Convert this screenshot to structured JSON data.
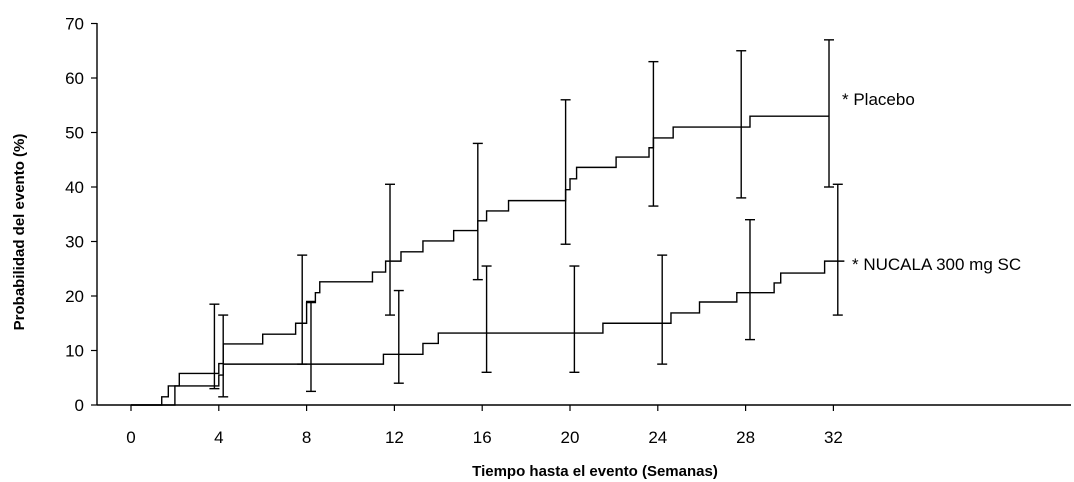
{
  "chart_data": {
    "type": "line",
    "title": "",
    "xlabel": "Tiempo hasta el evento (Semanas)",
    "ylabel": "Probabilidad del evento (%)",
    "xlim": [
      0,
      32
    ],
    "ylim": [
      0,
      70
    ],
    "x_ticks": [
      "0",
      "4",
      "8",
      "12",
      "16",
      "20",
      "24",
      "28",
      "32"
    ],
    "y_ticks": [
      "0",
      "10",
      "20",
      "30",
      "40",
      "50",
      "60",
      "70"
    ],
    "grid": false,
    "series": [
      {
        "name": "* Placebo",
        "steps": [
          [
            0,
            0
          ],
          [
            1.4,
            1.5
          ],
          [
            1.7,
            3.5
          ],
          [
            2.2,
            5.8
          ],
          [
            4.0,
            7.6
          ],
          [
            4.2,
            11.2
          ],
          [
            6.0,
            13.0
          ],
          [
            7.5,
            15.0
          ],
          [
            8.0,
            18.8
          ],
          [
            8.4,
            20.6
          ],
          [
            8.6,
            22.6
          ],
          [
            11.0,
            24.4
          ],
          [
            11.6,
            26.4
          ],
          [
            12.3,
            28.1
          ],
          [
            13.3,
            30.1
          ],
          [
            14.7,
            32.0
          ],
          [
            15.8,
            33.8
          ],
          [
            16.2,
            35.6
          ],
          [
            17.2,
            37.5
          ],
          [
            19.8,
            39.5
          ],
          [
            20.0,
            41.5
          ],
          [
            20.3,
            43.6
          ],
          [
            22.1,
            45.5
          ],
          [
            23.6,
            47.2
          ],
          [
            23.8,
            49.0
          ],
          [
            24.7,
            51.0
          ],
          [
            28.2,
            53.0
          ],
          [
            31.8,
            53.0
          ]
        ],
        "error_bars": [
          {
            "x": 3.8,
            "low": 3.0,
            "high": 18.5
          },
          {
            "x": 7.8,
            "low": 7.5,
            "high": 27.5
          },
          {
            "x": 11.8,
            "low": 16.5,
            "high": 40.5
          },
          {
            "x": 15.8,
            "low": 23.0,
            "high": 48.0
          },
          {
            "x": 19.8,
            "low": 29.5,
            "high": 56.0
          },
          {
            "x": 23.8,
            "low": 36.5,
            "high": 63.0
          },
          {
            "x": 27.8,
            "low": 38.0,
            "high": 65.0
          },
          {
            "x": 31.8,
            "low": 40.0,
            "high": 67.0
          }
        ]
      },
      {
        "name": "* NUCALA 300 mg SC",
        "steps": [
          [
            0,
            0
          ],
          [
            2.0,
            3.5
          ],
          [
            4.0,
            5.5
          ],
          [
            4.2,
            7.5
          ],
          [
            11.5,
            9.3
          ],
          [
            13.3,
            11.3
          ],
          [
            14.0,
            13.2
          ],
          [
            21.5,
            15.0
          ],
          [
            24.6,
            16.9
          ],
          [
            25.9,
            18.9
          ],
          [
            27.6,
            20.6
          ],
          [
            29.3,
            22.4
          ],
          [
            29.6,
            24.2
          ],
          [
            31.6,
            26.4
          ],
          [
            32.5,
            26.4
          ]
        ],
        "error_bars": [
          {
            "x": 4.2,
            "low": 1.5,
            "high": 16.5
          },
          {
            "x": 8.2,
            "low": 2.5,
            "high": 19.0
          },
          {
            "x": 12.2,
            "low": 4.0,
            "high": 21.0
          },
          {
            "x": 16.2,
            "low": 6.0,
            "high": 25.5
          },
          {
            "x": 20.2,
            "low": 6.0,
            "high": 25.5
          },
          {
            "x": 24.2,
            "low": 7.5,
            "high": 27.5
          },
          {
            "x": 28.2,
            "low": 12.0,
            "high": 34.0
          },
          {
            "x": 32.2,
            "low": 16.5,
            "high": 40.5
          }
        ]
      }
    ]
  }
}
